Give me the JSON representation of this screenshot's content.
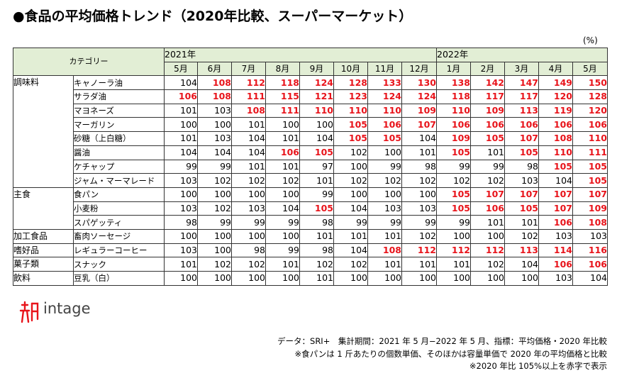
{
  "title": "●食品の平均価格トレンド（2020年比較、スーパーマーケット）",
  "unit": "(%)",
  "table": {
    "header_category": "カテゴリー",
    "year_2021": "2021年",
    "year_2022": "2022年",
    "months": [
      "5月",
      "6月",
      "7月",
      "8月",
      "9月",
      "10月",
      "11月",
      "12月",
      "1月",
      "2月",
      "3月",
      "4月",
      "5月"
    ],
    "groups": [
      {
        "category": "調味料",
        "rows": [
          {
            "item": "キャノーラ油",
            "values": [
              104,
              108,
              112,
              118,
              124,
              128,
              133,
              130,
              138,
              142,
              147,
              149,
              150
            ]
          },
          {
            "item": "サラダ油",
            "values": [
              106,
              108,
              111,
              115,
              121,
              123,
              124,
              124,
              118,
              117,
              117,
              120,
              128
            ]
          },
          {
            "item": "マヨネーズ",
            "values": [
              101,
              103,
              108,
              111,
              110,
              110,
              110,
              109,
              110,
              109,
              113,
              119,
              120
            ]
          },
          {
            "item": "マーガリン",
            "values": [
              100,
              100,
              101,
              100,
              100,
              105,
              106,
              107,
              106,
              106,
              106,
              106,
              106
            ]
          },
          {
            "item": "砂糖（上白糖）",
            "values": [
              101,
              103,
              104,
              101,
              104,
              105,
              105,
              104,
              109,
              105,
              107,
              108,
              110
            ]
          },
          {
            "item": "醤油",
            "values": [
              104,
              104,
              104,
              106,
              105,
              102,
              100,
              101,
              105,
              101,
              105,
              110,
              111
            ]
          },
          {
            "item": "ケチャップ",
            "values": [
              99,
              99,
              101,
              101,
              97,
              100,
              99,
              98,
              99,
              99,
              98,
              105,
              105
            ]
          },
          {
            "item": "ジャム・マーマレード",
            "values": [
              103,
              102,
              102,
              102,
              101,
              102,
              102,
              102,
              102,
              102,
              103,
              104,
              105
            ]
          }
        ]
      },
      {
        "category": "主食",
        "rows": [
          {
            "item": "食パン",
            "values": [
              100,
              100,
              100,
              100,
              99,
              100,
              100,
              100,
              105,
              107,
              107,
              107,
              107
            ]
          },
          {
            "item": "小麦粉",
            "values": [
              103,
              102,
              103,
              104,
              105,
              104,
              103,
              103,
              105,
              106,
              105,
              107,
              109
            ]
          },
          {
            "item": "スパゲッティ",
            "values": [
              98,
              99,
              99,
              99,
              98,
              99,
              99,
              99,
              99,
              101,
              101,
              106,
              108
            ]
          }
        ]
      },
      {
        "category": "加工食品",
        "rows": [
          {
            "item": "畜肉ソーセージ",
            "values": [
              100,
              100,
              100,
              100,
              101,
              101,
              101,
              102,
              100,
              100,
              102,
              103,
              103
            ]
          }
        ]
      },
      {
        "category": "嗜好品",
        "rows": [
          {
            "item": "レギュラーコーヒー",
            "values": [
              103,
              100,
              98,
              99,
              98,
              104,
              108,
              112,
              112,
              112,
              113,
              114,
              116
            ]
          }
        ]
      },
      {
        "category": "菓子類",
        "rows": [
          {
            "item": "スナック",
            "values": [
              101,
              102,
              102,
              101,
              102,
              102,
              101,
              101,
              101,
              102,
              104,
              106,
              106
            ]
          }
        ]
      },
      {
        "category": "飲料",
        "rows": [
          {
            "item": "豆乳（白）",
            "values": [
              100,
              100,
              100,
              100,
              101,
              100,
              100,
              100,
              100,
              100,
              100,
              103,
              104
            ]
          }
        ]
      }
    ],
    "highlight_threshold": 105,
    "highlight_color": "#e8141b"
  },
  "logo": {
    "text": "intage",
    "icon": "intage-mark-icon"
  },
  "notes": [
    "データ：SRI+　集計期間：2021 年 5 月−2022 年 5 月、指標：平均価格・2020 年比較",
    "※食パンは 1 斤あたりの個数単価、そのほかは容量単価で 2020 年の平均価格と比較",
    "※2020 年比 105%以上を赤字で表示"
  ]
}
